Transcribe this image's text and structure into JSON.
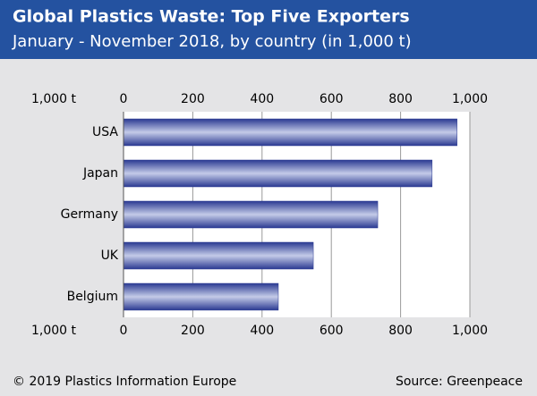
{
  "chart_data": {
    "type": "hbar",
    "title": "Global Plastics Waste: Top Five Exporters",
    "subtitle": "January - November 2018, by country (in 1,000 t)",
    "x_unit": "1,000 t",
    "categories": [
      "USA",
      "Japan",
      "Germany",
      "UK",
      "Belgium"
    ],
    "values": [
      963,
      891,
      734,
      548,
      447
    ],
    "color": "#2b3a92",
    "xlim": [
      0,
      1000
    ],
    "xticks": [
      0,
      200,
      400,
      600,
      800,
      {
        "value": 1000,
        "label": "1,000"
      }
    ],
    "grid": true,
    "copyright": "© 2019 Plastics Information Europe",
    "source": "Source: Greenpeace"
  }
}
